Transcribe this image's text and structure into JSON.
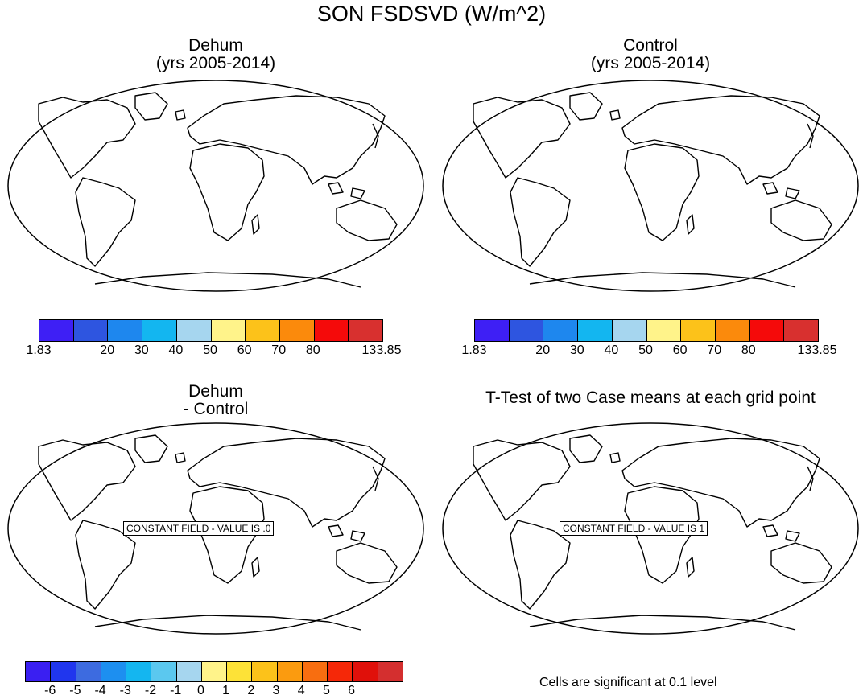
{
  "title": "SON FSDSVD (W/m^2)",
  "panels": {
    "dehum": {
      "line1": "Dehum",
      "line2": "(yrs 2005-2014)"
    },
    "control": {
      "line1": "Control",
      "line2": "(yrs 2005-2014)"
    },
    "diff": {
      "line1": "Dehum",
      "line2": "- Control",
      "box_label": "CONSTANT FIELD - VALUE IS .0"
    },
    "ttest": {
      "line1": "T-Test of two Case means at each grid point",
      "box_label": "CONSTANT FIELD - VALUE IS 1"
    }
  },
  "colorbar_top": {
    "colors": [
      "#3e1ff5",
      "#2e55e0",
      "#1e87ee",
      "#13b6f0",
      "#a6d6ef",
      "#fff38a",
      "#fcc21a",
      "#fb8a0c",
      "#f50a0a",
      "#d8302f"
    ],
    "labels": [
      "1.83",
      "20",
      "30",
      "40",
      "50",
      "60",
      "70",
      "80",
      "133.85"
    ]
  },
  "colorbar_bottom": {
    "colors": [
      "#3a1ff2",
      "#2036ee",
      "#3d6be0",
      "#1d8ff0",
      "#14b6f0",
      "#5bc8ef",
      "#a6d6ef",
      "#fff38a",
      "#fde237",
      "#fcc21a",
      "#fb9b0f",
      "#f86e10",
      "#f52808",
      "#e0100a",
      "#d42f2f"
    ],
    "labels": [
      "-6",
      "-5",
      "-4",
      "-3",
      "-2",
      "-1",
      "0",
      "1",
      "2",
      "3",
      "4",
      "5",
      "6"
    ]
  },
  "note": "Cells are significant at 0.1 level"
}
